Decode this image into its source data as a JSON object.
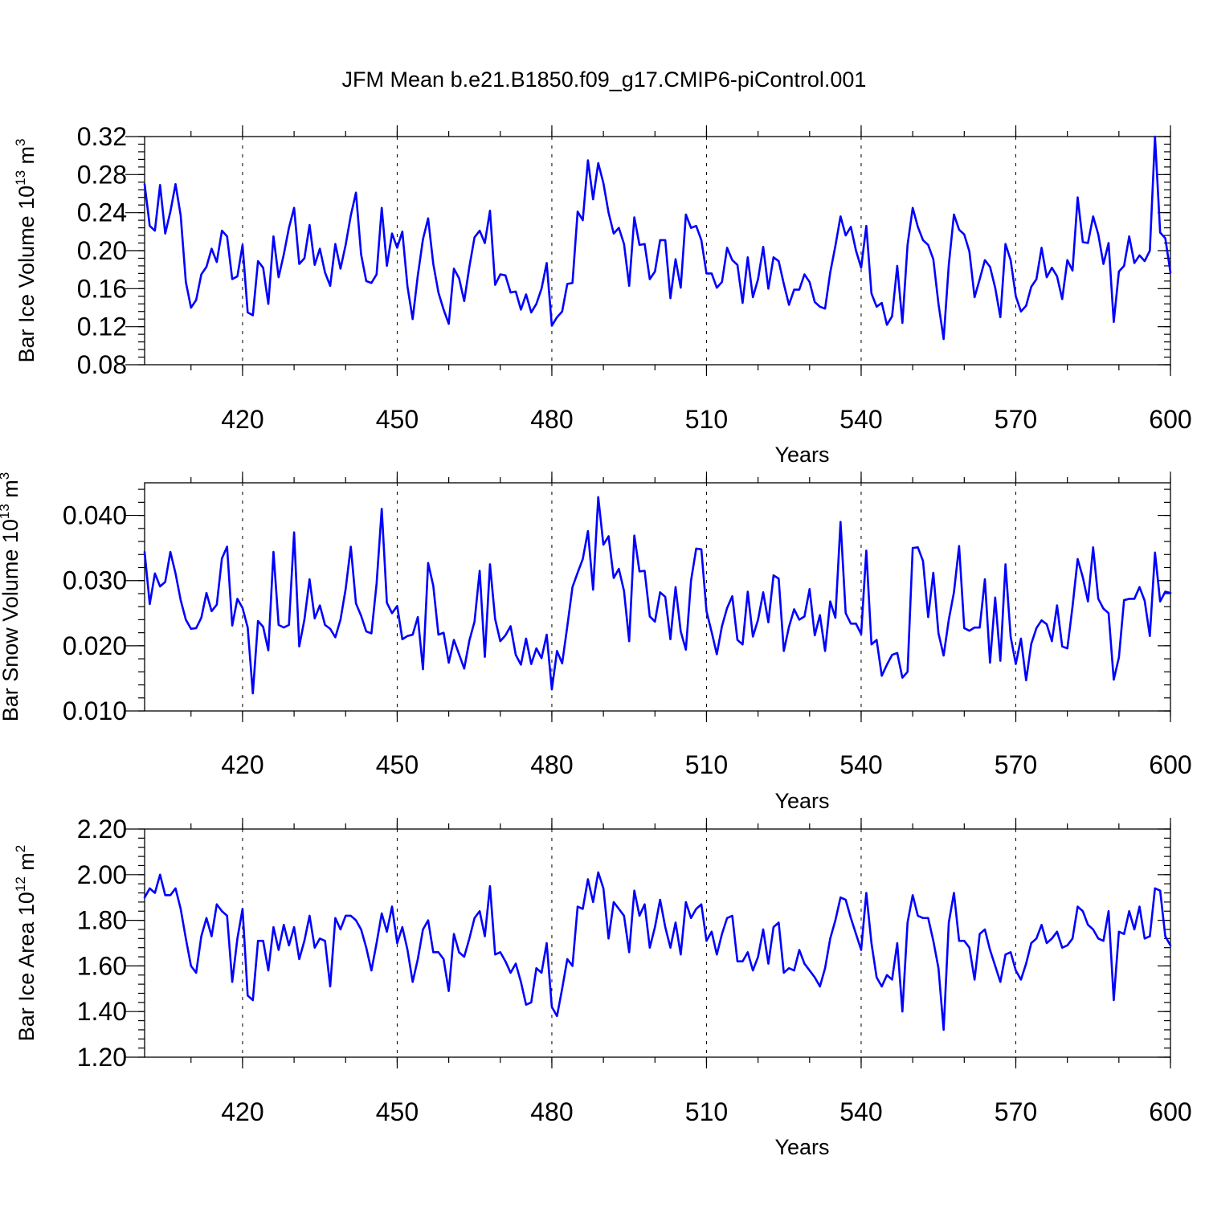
{
  "figure": {
    "title": "JFM Mean b.e21.B1850.f09_g17.CMIP6-piControl.001",
    "line_color": "#0000ff"
  },
  "chart_data": [
    {
      "type": "line",
      "xlabel": "Years",
      "ylabel": "Bar Ice Volume 10",
      "ylabel_exp": "13",
      "ylabel_unit": " m",
      "ylabel_unit_exp": "3",
      "xlim": [
        401,
        600
      ],
      "ylim": [
        0.08,
        0.32
      ],
      "x_ticks": [
        420,
        450,
        480,
        510,
        540,
        570,
        600
      ],
      "y_ticks": [
        "0.08",
        "0.12",
        "0.16",
        "0.20",
        "0.24",
        "0.28",
        "0.32"
      ],
      "y_minor_step": 0.008,
      "grid_x_dashed": [
        420,
        450,
        480,
        510,
        540,
        570
      ],
      "series": [
        {
          "color": "#0000ff",
          "x_start": 401,
          "values": [
            0.27,
            0.226,
            0.221,
            0.269,
            0.218,
            0.241,
            0.27,
            0.237,
            0.167,
            0.14,
            0.148,
            0.175,
            0.183,
            0.202,
            0.188,
            0.221,
            0.215,
            0.17,
            0.173,
            0.206,
            0.135,
            0.132,
            0.189,
            0.182,
            0.144,
            0.215,
            0.172,
            0.196,
            0.224,
            0.245,
            0.186,
            0.192,
            0.227,
            0.185,
            0.202,
            0.177,
            0.163,
            0.207,
            0.181,
            0.206,
            0.237,
            0.261,
            0.196,
            0.168,
            0.166,
            0.175,
            0.245,
            0.184,
            0.218,
            0.203,
            0.22,
            0.162,
            0.128,
            0.174,
            0.212,
            0.234,
            0.186,
            0.156,
            0.138,
            0.123,
            0.181,
            0.171,
            0.147,
            0.183,
            0.214,
            0.221,
            0.208,
            0.242,
            0.164,
            0.175,
            0.174,
            0.156,
            0.157,
            0.138,
            0.154,
            0.135,
            0.144,
            0.16,
            0.187,
            0.121,
            0.13,
            0.136,
            0.165,
            0.166,
            0.241,
            0.232,
            0.295,
            0.254,
            0.292,
            0.271,
            0.24,
            0.218,
            0.224,
            0.207,
            0.163,
            0.235,
            0.206,
            0.207,
            0.17,
            0.178,
            0.211,
            0.211,
            0.15,
            0.191,
            0.161,
            0.238,
            0.224,
            0.226,
            0.211,
            0.176,
            0.176,
            0.161,
            0.167,
            0.203,
            0.19,
            0.185,
            0.145,
            0.193,
            0.151,
            0.17,
            0.204,
            0.16,
            0.193,
            0.189,
            0.165,
            0.143,
            0.159,
            0.159,
            0.175,
            0.167,
            0.146,
            0.141,
            0.139,
            0.177,
            0.205,
            0.236,
            0.216,
            0.225,
            0.2,
            0.182,
            0.226,
            0.155,
            0.141,
            0.145,
            0.122,
            0.131,
            0.184,
            0.124,
            0.206,
            0.245,
            0.225,
            0.211,
            0.206,
            0.191,
            0.144,
            0.107,
            0.185,
            0.238,
            0.222,
            0.217,
            0.199,
            0.151,
            0.17,
            0.19,
            0.183,
            0.161,
            0.13,
            0.207,
            0.19,
            0.152,
            0.136,
            0.142,
            0.162,
            0.17,
            0.203,
            0.172,
            0.182,
            0.173,
            0.149,
            0.19,
            0.179,
            0.256,
            0.209,
            0.208,
            0.236,
            0.217,
            0.186,
            0.208,
            0.125,
            0.178,
            0.184,
            0.215,
            0.187,
            0.195,
            0.189,
            0.2,
            0.32,
            0.219,
            0.213,
            0.177
          ]
        }
      ]
    },
    {
      "type": "line",
      "xlabel": "Years",
      "ylabel": "Bar Snow Volume 10",
      "ylabel_exp": "13",
      "ylabel_unit": " m",
      "ylabel_unit_exp": "3",
      "xlim": [
        401,
        600
      ],
      "ylim": [
        0.01,
        0.045
      ],
      "x_ticks": [
        420,
        450,
        480,
        510,
        540,
        570,
        600
      ],
      "y_ticks": [
        "0.010",
        "0.020",
        "0.030",
        "0.040"
      ],
      "y_minor_step": 0.002,
      "grid_x_dashed": [
        420,
        450,
        480,
        510,
        540,
        570
      ],
      "series": [
        {
          "color": "#0000ff",
          "x_start": 401,
          "values": [
            0.0344,
            0.0264,
            0.0311,
            0.0291,
            0.0298,
            0.0344,
            0.0311,
            0.027,
            0.024,
            0.0226,
            0.0227,
            0.0243,
            0.0281,
            0.0253,
            0.0263,
            0.0334,
            0.0352,
            0.0231,
            0.0272,
            0.0258,
            0.0228,
            0.0127,
            0.0238,
            0.0229,
            0.0193,
            0.0344,
            0.0232,
            0.0228,
            0.0232,
            0.0374,
            0.0199,
            0.024,
            0.0302,
            0.0242,
            0.0262,
            0.0232,
            0.0226,
            0.0213,
            0.024,
            0.0287,
            0.0352,
            0.0265,
            0.0246,
            0.0222,
            0.0219,
            0.0295,
            0.041,
            0.0266,
            0.025,
            0.0261,
            0.021,
            0.0215,
            0.0217,
            0.0244,
            0.0164,
            0.0327,
            0.0292,
            0.0217,
            0.022,
            0.0174,
            0.0209,
            0.0187,
            0.0165,
            0.0208,
            0.0237,
            0.0315,
            0.0183,
            0.0325,
            0.0241,
            0.0207,
            0.0216,
            0.023,
            0.0186,
            0.0171,
            0.0211,
            0.0172,
            0.0196,
            0.0181,
            0.0217,
            0.0133,
            0.0192,
            0.0173,
            0.023,
            0.029,
            0.0312,
            0.0333,
            0.0376,
            0.0286,
            0.0428,
            0.0355,
            0.0368,
            0.0304,
            0.0318,
            0.0284,
            0.0207,
            0.0369,
            0.0314,
            0.0315,
            0.0245,
            0.0237,
            0.0282,
            0.0275,
            0.021,
            0.029,
            0.0222,
            0.0194,
            0.03,
            0.0349,
            0.0348,
            0.0253,
            0.0221,
            0.0187,
            0.023,
            0.0258,
            0.0276,
            0.0209,
            0.0202,
            0.0283,
            0.0214,
            0.024,
            0.0282,
            0.0236,
            0.0308,
            0.0303,
            0.0192,
            0.0229,
            0.0256,
            0.024,
            0.0245,
            0.0287,
            0.0216,
            0.0247,
            0.0192,
            0.0268,
            0.0243,
            0.039,
            0.025,
            0.0234,
            0.0234,
            0.0218,
            0.0346,
            0.0202,
            0.0209,
            0.0154,
            0.0171,
            0.0186,
            0.0189,
            0.0151,
            0.016,
            0.035,
            0.0351,
            0.033,
            0.0244,
            0.0312,
            0.0219,
            0.0185,
            0.024,
            0.0282,
            0.0353,
            0.0227,
            0.0223,
            0.0228,
            0.0228,
            0.0302,
            0.0174,
            0.0274,
            0.0177,
            0.0325,
            0.0214,
            0.0172,
            0.0211,
            0.0147,
            0.0203,
            0.0227,
            0.0239,
            0.0233,
            0.0207,
            0.0262,
            0.0199,
            0.0196,
            0.026,
            0.0333,
            0.0305,
            0.0268,
            0.0351,
            0.0272,
            0.0257,
            0.025,
            0.0148,
            0.0182,
            0.027,
            0.0272,
            0.0272,
            0.029,
            0.0269,
            0.0215,
            0.0343,
            0.0268,
            0.0283,
            0.0281
          ]
        }
      ]
    },
    {
      "type": "line",
      "xlabel": "Years",
      "ylabel": "Bar Ice Area 10",
      "ylabel_exp": "12",
      "ylabel_unit": " m",
      "ylabel_unit_exp": "2",
      "xlim": [
        401,
        600
      ],
      "ylim": [
        1.2,
        2.2
      ],
      "x_ticks": [
        420,
        450,
        480,
        510,
        540,
        570,
        600
      ],
      "y_ticks": [
        "1.20",
        "1.40",
        "1.60",
        "1.80",
        "2.00",
        "2.20"
      ],
      "y_minor_step": 0.04,
      "grid_x_dashed": [
        420,
        450,
        480,
        510,
        540,
        570
      ],
      "series": [
        {
          "color": "#0000ff",
          "x_start": 401,
          "values": [
            1.9,
            1.94,
            1.92,
            2.0,
            1.91,
            1.91,
            1.94,
            1.85,
            1.72,
            1.6,
            1.57,
            1.73,
            1.81,
            1.73,
            1.87,
            1.84,
            1.82,
            1.53,
            1.72,
            1.85,
            1.47,
            1.45,
            1.71,
            1.71,
            1.58,
            1.77,
            1.67,
            1.78,
            1.69,
            1.77,
            1.63,
            1.71,
            1.82,
            1.68,
            1.72,
            1.71,
            1.51,
            1.81,
            1.76,
            1.82,
            1.82,
            1.8,
            1.76,
            1.68,
            1.58,
            1.7,
            1.83,
            1.75,
            1.86,
            1.7,
            1.77,
            1.67,
            1.53,
            1.63,
            1.76,
            1.8,
            1.66,
            1.66,
            1.63,
            1.49,
            1.74,
            1.66,
            1.64,
            1.72,
            1.81,
            1.84,
            1.73,
            1.95,
            1.65,
            1.66,
            1.62,
            1.57,
            1.61,
            1.53,
            1.43,
            1.44,
            1.59,
            1.57,
            1.7,
            1.42,
            1.38,
            1.5,
            1.63,
            1.6,
            1.86,
            1.85,
            1.98,
            1.88,
            2.01,
            1.94,
            1.72,
            1.88,
            1.85,
            1.82,
            1.66,
            1.93,
            1.82,
            1.87,
            1.68,
            1.77,
            1.89,
            1.77,
            1.68,
            1.79,
            1.65,
            1.88,
            1.81,
            1.85,
            1.87,
            1.71,
            1.75,
            1.65,
            1.74,
            1.81,
            1.82,
            1.62,
            1.62,
            1.66,
            1.58,
            1.64,
            1.76,
            1.61,
            1.77,
            1.79,
            1.57,
            1.59,
            1.58,
            1.67,
            1.61,
            1.58,
            1.55,
            1.51,
            1.59,
            1.72,
            1.8,
            1.9,
            1.89,
            1.81,
            1.74,
            1.67,
            1.92,
            1.7,
            1.55,
            1.51,
            1.56,
            1.54,
            1.7,
            1.4,
            1.79,
            1.91,
            1.82,
            1.81,
            1.81,
            1.71,
            1.59,
            1.32,
            1.79,
            1.92,
            1.71,
            1.71,
            1.68,
            1.54,
            1.74,
            1.76,
            1.67,
            1.6,
            1.53,
            1.65,
            1.66,
            1.58,
            1.54,
            1.61,
            1.7,
            1.72,
            1.78,
            1.7,
            1.72,
            1.75,
            1.68,
            1.69,
            1.72,
            1.86,
            1.84,
            1.78,
            1.76,
            1.72,
            1.71,
            1.84,
            1.45,
            1.75,
            1.74,
            1.84,
            1.76,
            1.86,
            1.72,
            1.73,
            1.94,
            1.93,
            1.73,
            1.69
          ]
        }
      ]
    }
  ]
}
